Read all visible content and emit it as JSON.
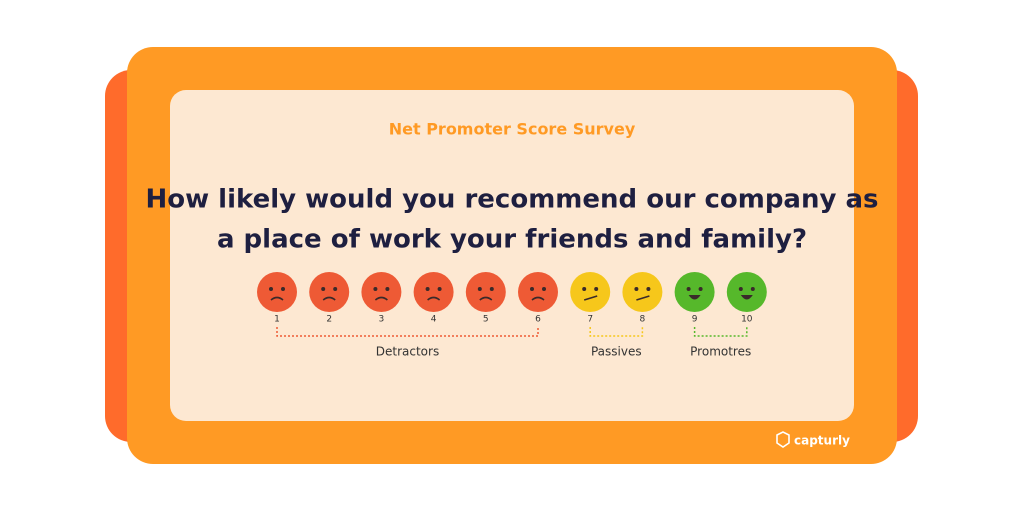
{
  "header": {
    "subtitle": "Net Promoter Score Survey",
    "question": [
      "How likely would you recommend our company as",
      "a place of work your friends and family?"
    ]
  },
  "groups": [
    {
      "label": "Detractors",
      "color": "#ee5a35",
      "scores": [
        1,
        2,
        3,
        4,
        5,
        6
      ]
    },
    {
      "label": "Passives",
      "color": "#f6c71b",
      "scores": [
        7,
        8
      ]
    },
    {
      "label": "Promotres",
      "color": "#56b82b",
      "scores": [
        9,
        10
      ]
    }
  ],
  "brand": "capturly"
}
